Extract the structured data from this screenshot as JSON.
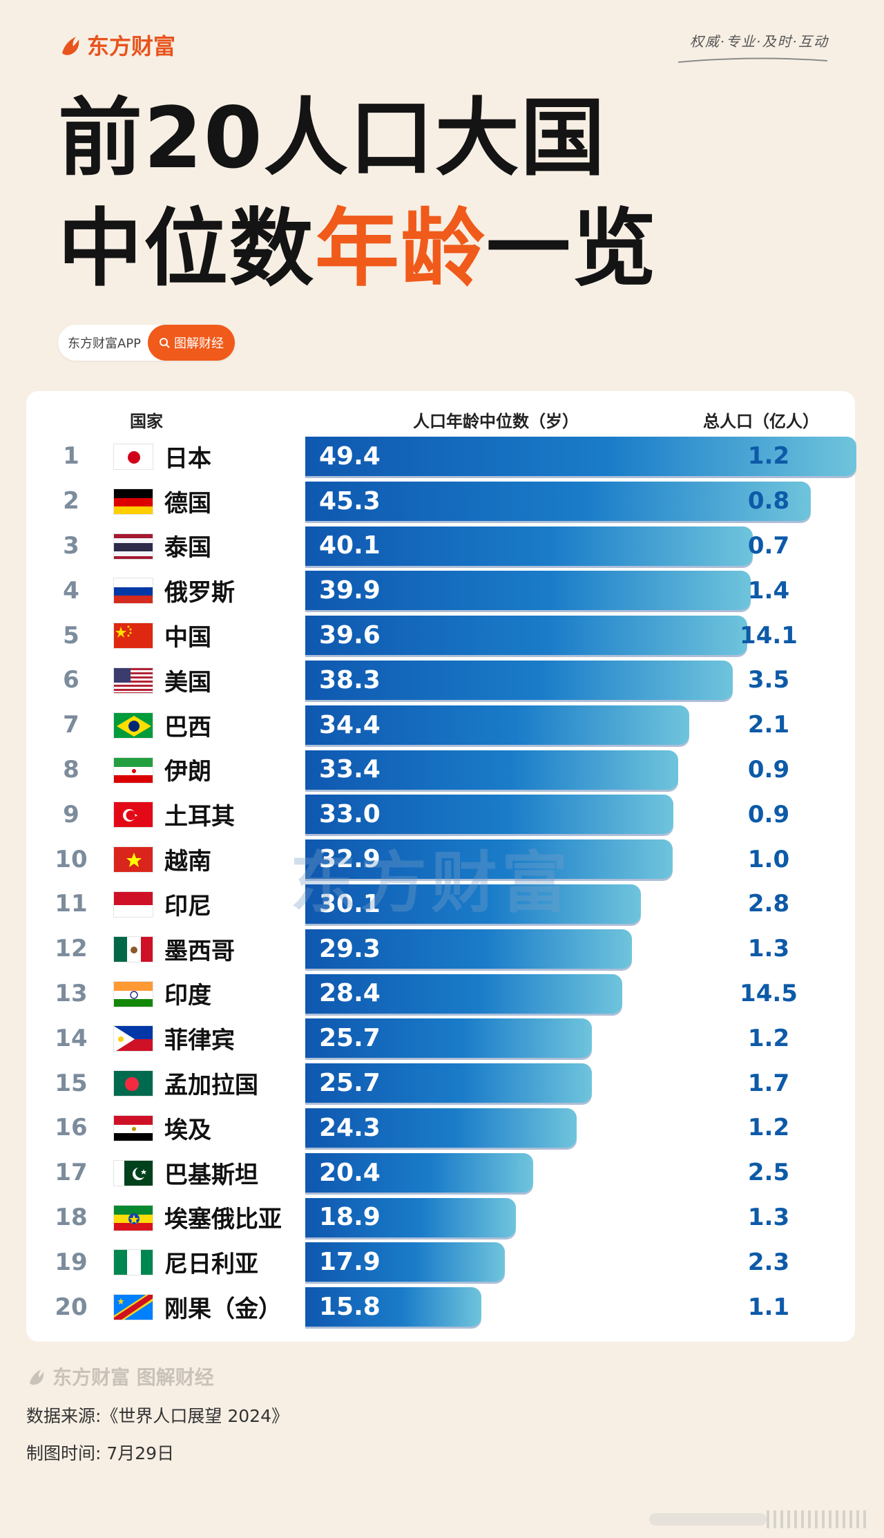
{
  "brand": {
    "name": "东方财富",
    "slogan": "权威·专业·及时·互动"
  },
  "title": {
    "line1": "前20人口大国",
    "line2_a": "中位数",
    "line2_accent": "年龄",
    "line2_b": "一览"
  },
  "tag_pill": {
    "app": "东方财富APP",
    "tag": "图解财经"
  },
  "table_headers": {
    "country": "国家",
    "median_age": "人口年龄中位数（岁）",
    "population": "总人口（亿人）"
  },
  "watermark": "东方财富",
  "footer": {
    "logo_text": "东方财富 图解财经",
    "source": "数据来源:《世界人口展望 2024》",
    "date": "制图时间: 7月29日"
  },
  "chart_data": {
    "type": "bar",
    "orientation": "horizontal",
    "title": "前20人口大国中位数年龄一览",
    "value_label": "人口年龄中位数（岁）",
    "xlim": [
      0,
      50
    ],
    "rows": [
      {
        "rank": "1",
        "country": "日本",
        "flag": "japan-flag-icon",
        "median_age": 49.4,
        "median_age_label": "49.4",
        "population": "1.2"
      },
      {
        "rank": "2",
        "country": "德国",
        "flag": "germany-flag-icon",
        "median_age": 45.3,
        "median_age_label": "45.3",
        "population": "0.8"
      },
      {
        "rank": "3",
        "country": "泰国",
        "flag": "thailand-flag-icon",
        "median_age": 40.1,
        "median_age_label": "40.1",
        "population": "0.7"
      },
      {
        "rank": "4",
        "country": "俄罗斯",
        "flag": "russia-flag-icon",
        "median_age": 39.9,
        "median_age_label": "39.9",
        "population": "1.4"
      },
      {
        "rank": "5",
        "country": "中国",
        "flag": "china-flag-icon",
        "median_age": 39.6,
        "median_age_label": "39.6",
        "population": "14.1"
      },
      {
        "rank": "6",
        "country": "美国",
        "flag": "usa-flag-icon",
        "median_age": 38.3,
        "median_age_label": "38.3",
        "population": "3.5"
      },
      {
        "rank": "7",
        "country": "巴西",
        "flag": "brazil-flag-icon",
        "median_age": 34.4,
        "median_age_label": "34.4",
        "population": "2.1"
      },
      {
        "rank": "8",
        "country": "伊朗",
        "flag": "iran-flag-icon",
        "median_age": 33.4,
        "median_age_label": "33.4",
        "population": "0.9"
      },
      {
        "rank": "9",
        "country": "土耳其",
        "flag": "turkey-flag-icon",
        "median_age": 33.0,
        "median_age_label": "33.0",
        "population": "0.9"
      },
      {
        "rank": "10",
        "country": "越南",
        "flag": "vietnam-flag-icon",
        "median_age": 32.9,
        "median_age_label": "32.9",
        "population": "1.0"
      },
      {
        "rank": "11",
        "country": "印尼",
        "flag": "indonesia-flag-icon",
        "median_age": 30.1,
        "median_age_label": "30.1",
        "population": "2.8"
      },
      {
        "rank": "12",
        "country": "墨西哥",
        "flag": "mexico-flag-icon",
        "median_age": 29.3,
        "median_age_label": "29.3",
        "population": "1.3"
      },
      {
        "rank": "13",
        "country": "印度",
        "flag": "india-flag-icon",
        "median_age": 28.4,
        "median_age_label": "28.4",
        "population": "14.5"
      },
      {
        "rank": "14",
        "country": "菲律宾",
        "flag": "philippines-flag-icon",
        "median_age": 25.7,
        "median_age_label": "25.7",
        "population": "1.2"
      },
      {
        "rank": "15",
        "country": "孟加拉国",
        "flag": "bangladesh-flag-icon",
        "median_age": 25.7,
        "median_age_label": "25.7",
        "population": "1.7"
      },
      {
        "rank": "16",
        "country": "埃及",
        "flag": "egypt-flag-icon",
        "median_age": 24.3,
        "median_age_label": "24.3",
        "population": "1.2"
      },
      {
        "rank": "17",
        "country": "巴基斯坦",
        "flag": "pakistan-flag-icon",
        "median_age": 20.4,
        "median_age_label": "20.4",
        "population": "2.5"
      },
      {
        "rank": "18",
        "country": "埃塞俄比亚",
        "flag": "ethiopia-flag-icon",
        "median_age": 18.9,
        "median_age_label": "18.9",
        "population": "1.3"
      },
      {
        "rank": "19",
        "country": "尼日利亚",
        "flag": "nigeria-flag-icon",
        "median_age": 17.9,
        "median_age_label": "17.9",
        "population": "2.3"
      },
      {
        "rank": "20",
        "country": "刚果（金）",
        "flag": "dr-congo-flag-icon",
        "median_age": 15.8,
        "median_age_label": "15.8",
        "population": "1.1"
      }
    ]
  }
}
